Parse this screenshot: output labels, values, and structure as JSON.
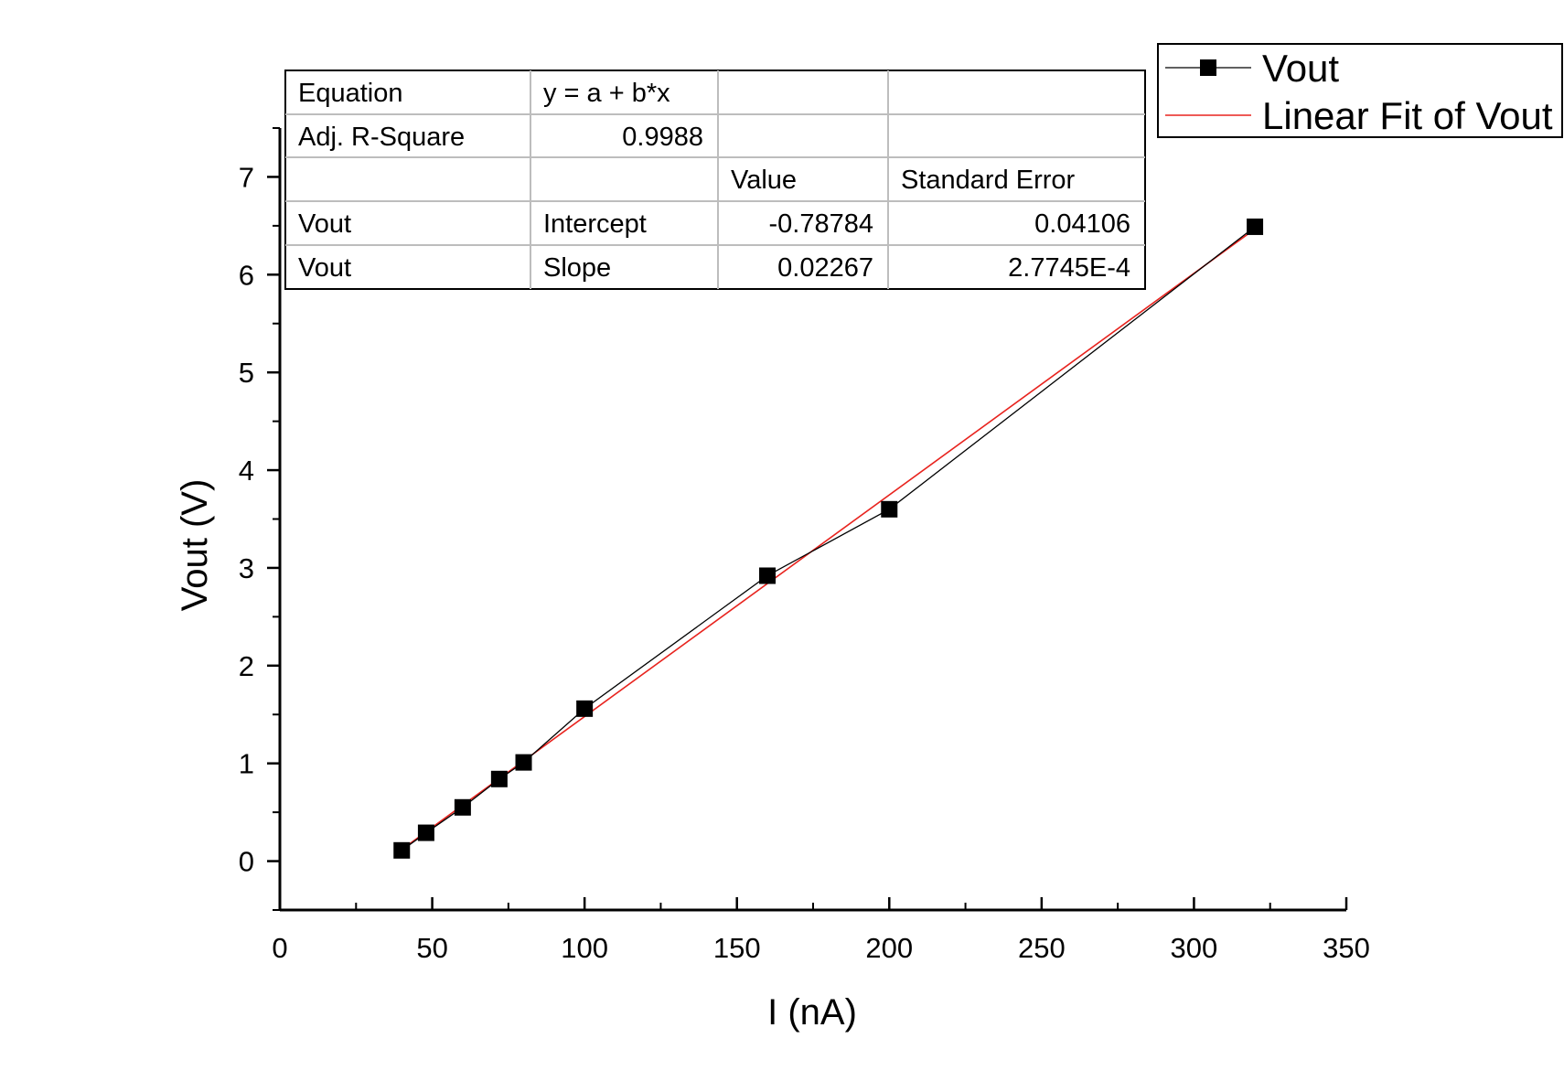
{
  "chart_data": {
    "type": "scatter",
    "xlabel": "I (nA)",
    "ylabel": "Vout (V)",
    "xlim": [
      0,
      350
    ],
    "ylim": [
      -0.5,
      7.5
    ],
    "x_ticks": [
      0,
      50,
      100,
      150,
      200,
      250,
      300,
      350
    ],
    "y_ticks": [
      0,
      1,
      2,
      3,
      4,
      5,
      6,
      7
    ],
    "grid": false,
    "legend_position": "top-right",
    "series": [
      {
        "name": "Vout",
        "type": "line+markers",
        "color": "#000000",
        "marker": "square",
        "x": [
          40,
          48,
          60,
          72,
          80,
          100,
          160,
          200,
          320
        ],
        "y": [
          0.11,
          0.29,
          0.55,
          0.84,
          1.01,
          1.56,
          2.92,
          3.6,
          6.49
        ]
      },
      {
        "name": "Linear Fit of Vout",
        "type": "line",
        "color": "#e8231e",
        "x": [
          40,
          320
        ],
        "y": [
          0.119,
          6.467
        ]
      }
    ],
    "fit_table": {
      "rows": [
        [
          "Equation",
          "y = a + b*x",
          "",
          ""
        ],
        [
          "Adj. R-Square",
          "0.9988",
          "",
          ""
        ],
        [
          "",
          "",
          "Value",
          "Standard Error"
        ],
        [
          "Vout",
          "Intercept",
          "-0.78784",
          "0.04106"
        ],
        [
          "Vout",
          "Slope",
          "0.02267",
          "2.7745E-4"
        ]
      ]
    }
  }
}
